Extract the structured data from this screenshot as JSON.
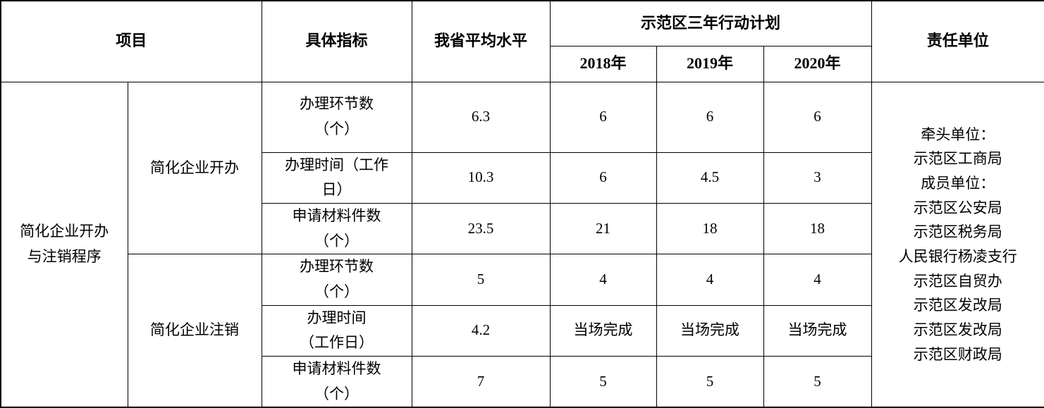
{
  "table": {
    "header": {
      "project": "项目",
      "indicator": "具体指标",
      "province_avg": "我省平均水平",
      "plan_group": "示范区三年行动计划",
      "years": [
        "2018年",
        "2019年",
        "2020年"
      ],
      "responsible": "责任单位"
    },
    "body": {
      "category": "简化企业开办\n与注销程序",
      "groups": [
        {
          "name": "简化企业开办",
          "rows": [
            {
              "indicator": "办理环节数\n（个）",
              "avg": "6.3",
              "y2018": "6",
              "y2019": "6",
              "y2020": "6"
            },
            {
              "indicator": "办理时间（工作\n日）",
              "avg": "10.3",
              "y2018": "6",
              "y2019": "4.5",
              "y2020": "3"
            },
            {
              "indicator": "申请材料件数\n（个）",
              "avg": "23.5",
              "y2018": "21",
              "y2019": "18",
              "y2020": "18"
            }
          ]
        },
        {
          "name": "简化企业注销",
          "rows": [
            {
              "indicator": "办理环节数\n（个）",
              "avg": "5",
              "y2018": "4",
              "y2019": "4",
              "y2020": "4"
            },
            {
              "indicator": "办理时间\n（工作日）",
              "avg": "4.2",
              "y2018": "当场完成",
              "y2019": "当场完成",
              "y2020": "当场完成"
            },
            {
              "indicator": "申请材料件数\n（个）",
              "avg": "7",
              "y2018": "5",
              "y2019": "5",
              "y2020": "5"
            }
          ]
        }
      ],
      "responsible": "牵头单位：\n示范区工商局\n成员单位：\n示范区公安局\n示范区税务局\n人民银行杨凌支行\n示范区自贸办\n示范区发改局\n示范区发改局\n示范区财政局"
    },
    "colors": {
      "border": "#000000",
      "text": "#000000",
      "background": "#ffffff"
    }
  }
}
